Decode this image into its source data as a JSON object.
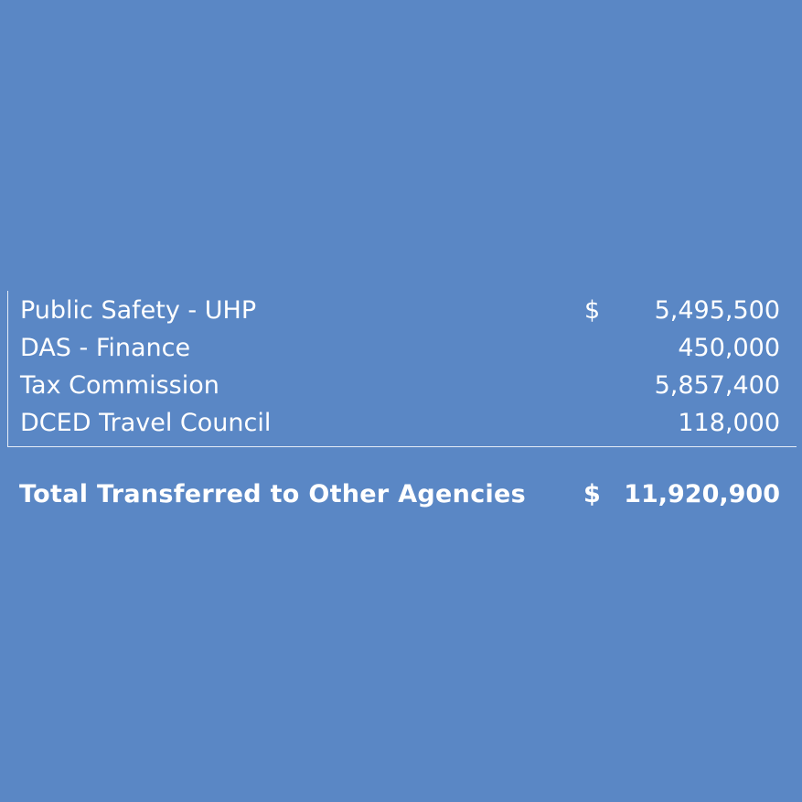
{
  "rows": [
    {
      "label": "Public Safety - UHP",
      "currency": "$",
      "amount": "5,495,500"
    },
    {
      "label": "DAS - Finance",
      "currency": "",
      "amount": "450,000"
    },
    {
      "label": "Tax Commission",
      "currency": "",
      "amount": "5,857,400"
    },
    {
      "label": "DCED Travel Council",
      "currency": "",
      "amount": "118,000"
    }
  ],
  "total": {
    "label": "Total Transferred to Other Agencies",
    "currency": "$",
    "amount": "11,920,900"
  }
}
